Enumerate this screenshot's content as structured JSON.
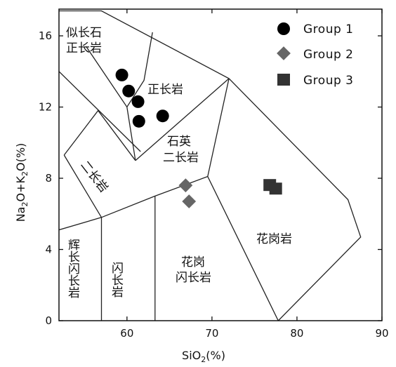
{
  "chart_data": {
    "type": "scatter",
    "title": "",
    "xlabel": "SiO₂(%)",
    "ylabel": "Na₂O+K₂O(%)",
    "xlim": [
      52,
      90
    ],
    "ylim": [
      0,
      17.5
    ],
    "x_ticks": [
      60,
      70,
      80,
      90
    ],
    "y_ticks": [
      0,
      4,
      8,
      12,
      16
    ],
    "grid": false,
    "legend_position": "top-right",
    "series": [
      {
        "name": "Group 1",
        "marker": "circle",
        "color": "#000000",
        "points": [
          {
            "x": 59.4,
            "y": 13.8
          },
          {
            "x": 60.2,
            "y": 12.9
          },
          {
            "x": 61.3,
            "y": 12.3
          },
          {
            "x": 61.4,
            "y": 11.2
          },
          {
            "x": 64.2,
            "y": 11.5
          }
        ]
      },
      {
        "name": "Group 2",
        "marker": "diamond",
        "color": "#666666",
        "points": [
          {
            "x": 66.9,
            "y": 7.6
          },
          {
            "x": 67.3,
            "y": 6.7
          }
        ]
      },
      {
        "name": "Group 3",
        "marker": "square",
        "color": "#333333",
        "points": [
          {
            "x": 76.8,
            "y": 7.6
          },
          {
            "x": 77.5,
            "y": 7.4
          }
        ]
      }
    ],
    "fields": [
      {
        "label_lines": [
          "似长石",
          "正长岩"
        ],
        "lines": [
          [
            [
              53,
              17.4
            ],
            [
              57,
              17.4
            ],
            [
              60,
              16.2
            ]
          ]
        ]
      },
      {
        "label_lines": [
          "正长岩"
        ],
        "lines": []
      },
      {
        "label_lines": [
          "石英",
          "二长岩"
        ],
        "lines": []
      },
      {
        "label_lines": [
          "二长岩"
        ],
        "rotated": true,
        "lines": []
      },
      {
        "label_lines": [
          "花岗岩"
        ],
        "lines": []
      },
      {
        "label_lines": [
          "花岗",
          "闪长岩"
        ],
        "lines": []
      },
      {
        "label_lines": [
          "闪长岩"
        ],
        "vertical": true,
        "lines": []
      },
      {
        "label_lines": [
          "辉长闪长岩"
        ],
        "vertical": true,
        "lines": []
      }
    ],
    "boundary_lines": [
      [
        [
          52,
          17.4
        ],
        [
          57,
          17.4
        ],
        [
          72,
          13.6
        ],
        [
          86,
          6.8
        ],
        [
          87.5,
          4.7
        ],
        [
          77.8,
          0
        ]
      ],
      [
        [
          52,
          14
        ],
        [
          61.6,
          9.5
        ]
      ],
      [
        [
          55.2,
          15.4
        ],
        [
          60,
          12
        ],
        [
          62,
          13.5
        ],
        [
          63,
          16.2
        ]
      ],
      [
        [
          60,
          12
        ],
        [
          61,
          9
        ]
      ],
      [
        [
          52.6,
          9.3
        ],
        [
          56.6,
          11.8
        ],
        [
          61,
          9
        ]
      ],
      [
        [
          52.6,
          9.3
        ],
        [
          57,
          5.8
        ]
      ],
      [
        [
          61,
          9
        ],
        [
          72,
          13.6
        ]
      ],
      [
        [
          72,
          13.6
        ],
        [
          69.5,
          8.1
        ],
        [
          77.8,
          0
        ]
      ],
      [
        [
          52,
          5.1
        ],
        [
          57,
          5.8
        ],
        [
          63.3,
          7.0
        ],
        [
          69.5,
          8.1
        ]
      ],
      [
        [
          57,
          5.8
        ],
        [
          57,
          0
        ]
      ],
      [
        [
          63.3,
          7.0
        ],
        [
          63.3,
          0
        ]
      ]
    ]
  },
  "labels": {
    "field_1_line1": "似长石",
    "field_1_line2": "正长岩",
    "field_2": "正长岩",
    "field_3_line1": "石英",
    "field_3_line2": "二长岩",
    "field_4": "二长岩",
    "field_5": "花岗岩",
    "field_6_line1": "花岗",
    "field_6_line2": "闪长岩",
    "field_7": "闪长岩",
    "field_8": "辉长闪长岩"
  }
}
